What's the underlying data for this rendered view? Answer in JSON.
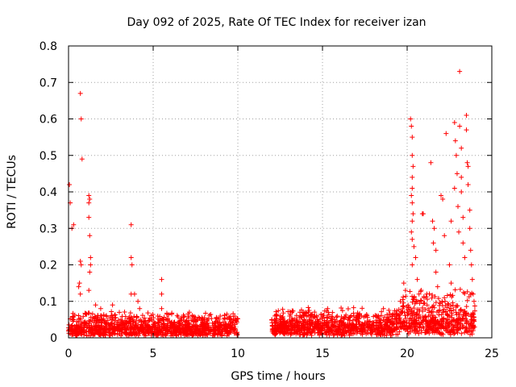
{
  "chart_data": {
    "type": "scatter",
    "title": "Day 092 of 2025, Rate Of TEC Index for receiver izan",
    "xlabel": "GPS time / hours",
    "ylabel": "ROTI / TECUs",
    "xlim": [
      0,
      25
    ],
    "ylim": [
      0,
      0.8
    ],
    "x_ticks": [
      "0",
      "5",
      "10",
      "15",
      "20",
      "25"
    ],
    "y_ticks": [
      "0",
      "0.1",
      "0.2",
      "0.3",
      "0.4",
      "0.5",
      "0.6",
      "0.7",
      "0.8"
    ],
    "grid": true,
    "marker": "+",
    "color": "#ff0000",
    "series": [
      {
        "name": "ROTI",
        "points": [
          [
            0.05,
            0.42
          ],
          [
            0.1,
            0.37
          ],
          [
            0.2,
            0.3
          ],
          [
            0.3,
            0.31
          ],
          [
            0.7,
            0.67
          ],
          [
            0.75,
            0.6
          ],
          [
            0.8,
            0.49
          ],
          [
            0.7,
            0.21
          ],
          [
            0.75,
            0.2
          ],
          [
            0.65,
            0.15
          ],
          [
            0.6,
            0.14
          ],
          [
            0.7,
            0.12
          ],
          [
            1.2,
            0.39
          ],
          [
            1.2,
            0.37
          ],
          [
            1.25,
            0.38
          ],
          [
            1.2,
            0.33
          ],
          [
            1.25,
            0.28
          ],
          [
            1.3,
            0.22
          ],
          [
            1.3,
            0.2
          ],
          [
            1.25,
            0.18
          ],
          [
            1.2,
            0.13
          ],
          [
            1.6,
            0.09
          ],
          [
            1.9,
            0.08
          ],
          [
            2.6,
            0.09
          ],
          [
            3.0,
            0.07
          ],
          [
            3.7,
            0.31
          ],
          [
            3.7,
            0.22
          ],
          [
            3.75,
            0.2
          ],
          [
            3.7,
            0.12
          ],
          [
            3.9,
            0.12
          ],
          [
            4.1,
            0.1
          ],
          [
            4.2,
            0.08
          ],
          [
            5.5,
            0.16
          ],
          [
            5.5,
            0.12
          ],
          [
            5.5,
            0.08
          ],
          [
            7.3,
            0.06
          ],
          [
            8.5,
            0.04
          ],
          [
            9.7,
            0.04
          ],
          [
            12.3,
            0.06
          ],
          [
            13.2,
            0.07
          ],
          [
            14.0,
            0.07
          ],
          [
            15.3,
            0.08
          ],
          [
            16.5,
            0.05
          ],
          [
            17.3,
            0.06
          ],
          [
            18.6,
            0.08
          ],
          [
            19.6,
            0.1
          ],
          [
            19.8,
            0.15
          ],
          [
            19.9,
            0.13
          ],
          [
            20.2,
            0.6
          ],
          [
            20.25,
            0.58
          ],
          [
            20.3,
            0.55
          ],
          [
            20.3,
            0.5
          ],
          [
            20.35,
            0.47
          ],
          [
            20.3,
            0.44
          ],
          [
            20.3,
            0.41
          ],
          [
            20.25,
            0.39
          ],
          [
            20.3,
            0.37
          ],
          [
            20.35,
            0.34
          ],
          [
            20.3,
            0.32
          ],
          [
            20.25,
            0.29
          ],
          [
            20.3,
            0.27
          ],
          [
            20.4,
            0.25
          ],
          [
            20.3,
            0.2
          ],
          [
            20.5,
            0.22
          ],
          [
            20.6,
            0.16
          ],
          [
            20.7,
            0.12
          ],
          [
            20.9,
            0.34
          ],
          [
            20.95,
            0.34
          ],
          [
            21.0,
            0.11
          ],
          [
            21.4,
            0.48
          ],
          [
            21.5,
            0.32
          ],
          [
            21.6,
            0.3
          ],
          [
            21.55,
            0.26
          ],
          [
            21.7,
            0.24
          ],
          [
            21.7,
            0.18
          ],
          [
            21.8,
            0.14
          ],
          [
            22.0,
            0.39
          ],
          [
            22.1,
            0.38
          ],
          [
            22.2,
            0.28
          ],
          [
            22.3,
            0.56
          ],
          [
            22.5,
            0.2
          ],
          [
            22.6,
            0.15
          ],
          [
            22.6,
            0.32
          ],
          [
            22.8,
            0.59
          ],
          [
            22.85,
            0.54
          ],
          [
            22.9,
            0.5
          ],
          [
            22.95,
            0.45
          ],
          [
            22.8,
            0.41
          ],
          [
            23.0,
            0.36
          ],
          [
            23.05,
            0.29
          ],
          [
            23.1,
            0.73
          ],
          [
            23.1,
            0.58
          ],
          [
            23.2,
            0.52
          ],
          [
            23.2,
            0.44
          ],
          [
            23.2,
            0.4
          ],
          [
            23.3,
            0.33
          ],
          [
            23.3,
            0.26
          ],
          [
            23.4,
            0.22
          ],
          [
            23.5,
            0.61
          ],
          [
            23.5,
            0.57
          ],
          [
            23.55,
            0.48
          ],
          [
            23.6,
            0.47
          ],
          [
            23.6,
            0.42
          ],
          [
            23.7,
            0.35
          ],
          [
            23.7,
            0.3
          ],
          [
            23.75,
            0.24
          ],
          [
            23.8,
            0.2
          ],
          [
            23.85,
            0.16
          ],
          [
            23.9,
            0.12
          ],
          [
            23.95,
            0.1
          ]
        ]
      }
    ],
    "dense_segments": [
      {
        "x_start": 0.0,
        "x_end": 10.0,
        "baseline": 0.025,
        "spread": 0.045
      },
      {
        "x_start": 12.0,
        "x_end": 19.5,
        "baseline": 0.03,
        "spread": 0.05
      },
      {
        "x_start": 19.5,
        "x_end": 24.0,
        "baseline": 0.04,
        "spread": 0.09
      }
    ]
  }
}
